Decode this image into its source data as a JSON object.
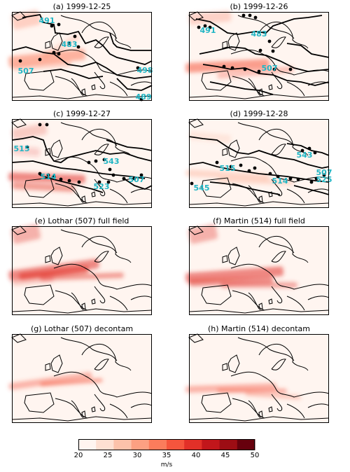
{
  "panels": [
    {
      "title": "(a) 1999-12-25",
      "labels": [
        "491",
        "483",
        "507",
        "498",
        "489"
      ]
    },
    {
      "title": "(b) 1999-12-26",
      "labels": [
        "491",
        "483",
        "507"
      ]
    },
    {
      "title": "(c) 1999-12-27",
      "labels": [
        "515",
        "543",
        "514",
        "507",
        "523"
      ]
    },
    {
      "title": "(d) 1999-12-28",
      "labels": [
        "543",
        "515",
        "507",
        "525",
        "545",
        "514"
      ]
    },
    {
      "title": "(e) Lothar (507) full field",
      "labels": []
    },
    {
      "title": "(f) Martin (514) full field",
      "labels": []
    },
    {
      "title": "(g) Lothar (507) decontam",
      "labels": []
    },
    {
      "title": "(h) Martin (514) decontam",
      "labels": []
    }
  ],
  "colorbar": {
    "ticks": [
      "20",
      "25",
      "30",
      "35",
      "40",
      "45",
      "50"
    ],
    "unit": "m/s",
    "colors": [
      "#fff5f0",
      "#fee0d2",
      "#fcc2aa",
      "#fca082",
      "#fb7c5c",
      "#f5553d",
      "#e23028",
      "#c2161b",
      "#9d0d14",
      "#67000d"
    ]
  },
  "map_style": {
    "land_line": "#000000",
    "label_color": "#1fb5c4",
    "dot_color": "#000000"
  }
}
